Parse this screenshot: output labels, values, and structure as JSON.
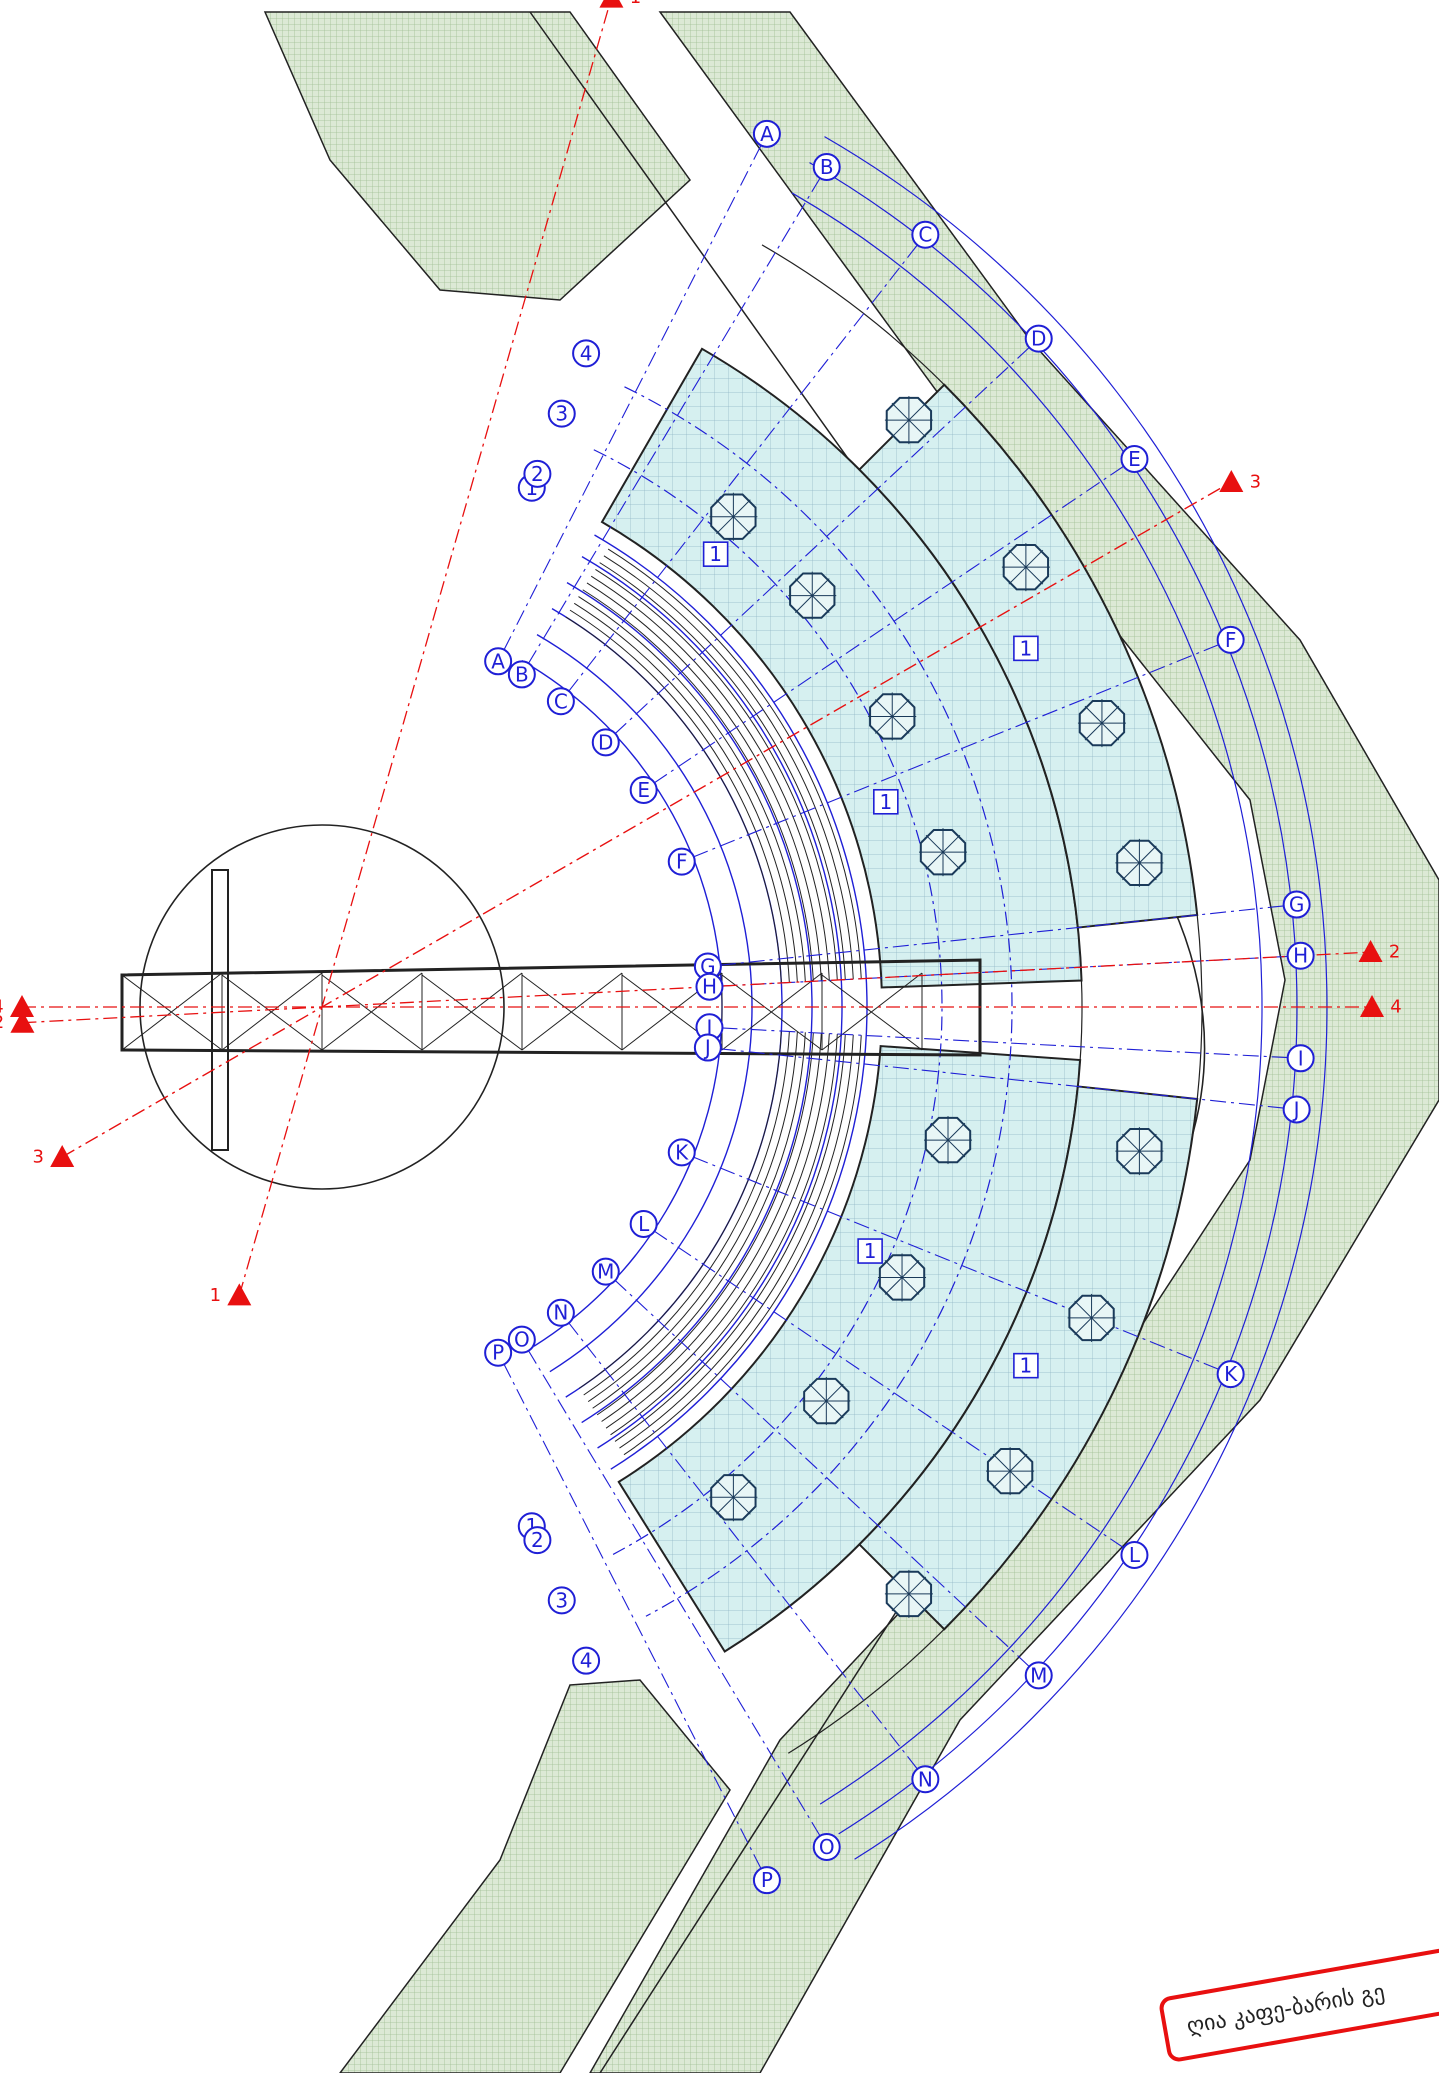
{
  "drawing": {
    "title_label": "ღია კაფე-ბარის გე",
    "colors": {
      "grid_line": "#1f1fd6",
      "section_line": "#e81010",
      "lawn": "#c9dcc0",
      "deck": "#cfeeee",
      "structure": "#222222"
    }
  },
  "radial_axes": [
    {
      "id": "A",
      "label": "A"
    },
    {
      "id": "B",
      "label": "B"
    },
    {
      "id": "C",
      "label": "C"
    },
    {
      "id": "D",
      "label": "D"
    },
    {
      "id": "E",
      "label": "E"
    },
    {
      "id": "F",
      "label": "F"
    },
    {
      "id": "G",
      "label": "G"
    },
    {
      "id": "H",
      "label": "H"
    },
    {
      "id": "I",
      "label": "I"
    },
    {
      "id": "J",
      "label": "J"
    },
    {
      "id": "K",
      "label": "K"
    },
    {
      "id": "L",
      "label": "L"
    },
    {
      "id": "M",
      "label": "M"
    },
    {
      "id": "N",
      "label": "N"
    },
    {
      "id": "O",
      "label": "O"
    },
    {
      "id": "P",
      "label": "P"
    }
  ],
  "arc_axes": [
    {
      "id": "1",
      "label": "1"
    },
    {
      "id": "2",
      "label": "2"
    },
    {
      "id": "3",
      "label": "3"
    },
    {
      "id": "4",
      "label": "4"
    }
  ],
  "sections": [
    {
      "id": "1",
      "label": "1"
    },
    {
      "id": "2",
      "label": "2"
    },
    {
      "id": "3",
      "label": "3"
    },
    {
      "id": "4",
      "label": "4"
    }
  ],
  "zone_tags": [
    "1",
    "1",
    "1",
    "1",
    "1"
  ]
}
